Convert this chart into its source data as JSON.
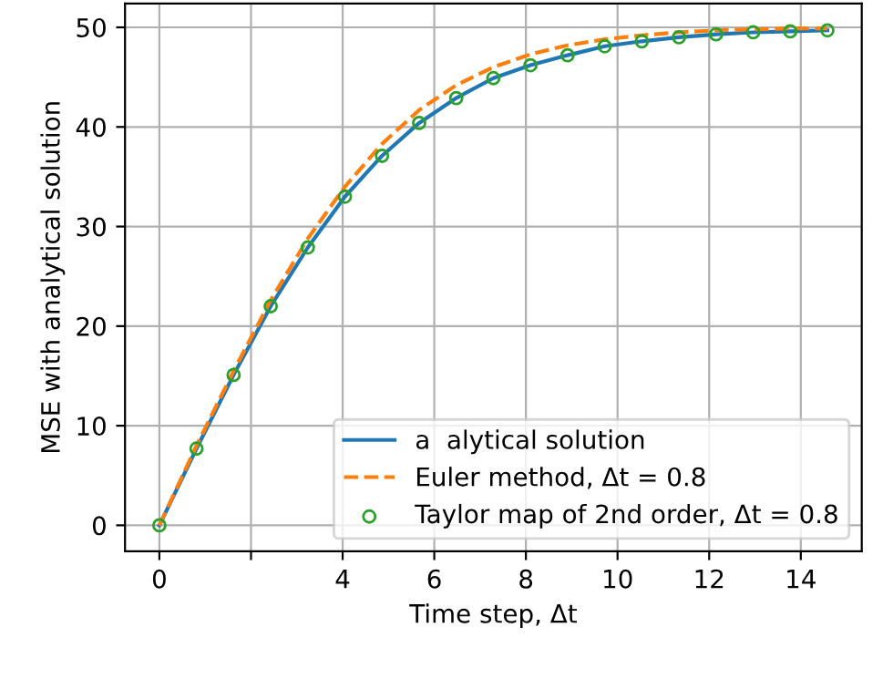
{
  "chart_data": {
    "type": "line",
    "xlabel": "Time step, Δt",
    "ylabel": "MSE with analytical solution",
    "x": [
      0,
      0.81,
      1.62,
      2.43,
      3.24,
      4.05,
      4.86,
      5.67,
      6.48,
      7.29,
      8.1,
      8.91,
      9.72,
      10.53,
      11.34,
      12.15,
      12.96,
      13.77,
      14.58
    ],
    "series": [
      {
        "name": "a  alytical solution",
        "color": "#1f77b4",
        "line_style": "solid",
        "marker": "none",
        "values": [
          0,
          7.7,
          15.1,
          22.0,
          27.9,
          33.0,
          37.1,
          40.4,
          42.9,
          44.9,
          46.2,
          47.2,
          48.1,
          48.6,
          49.0,
          49.3,
          49.5,
          49.6,
          49.7
        ]
      },
      {
        "name": "Euler method, Δt = 0.8",
        "color": "#ff7f0e",
        "line_style": "dashed",
        "marker": "none",
        "values": [
          0,
          8.0,
          15.5,
          22.6,
          28.8,
          34.0,
          38.3,
          41.7,
          44.2,
          46.0,
          47.3,
          48.2,
          48.8,
          49.2,
          49.5,
          49.7,
          49.8,
          49.9,
          49.9
        ]
      },
      {
        "name": "Taylor map of 2nd order, Δt = 0.8",
        "type": "scatter",
        "color": "#2ca02c",
        "marker": "circle",
        "values": [
          0,
          7.7,
          15.1,
          22.0,
          27.9,
          33.0,
          37.1,
          40.4,
          42.9,
          44.9,
          46.2,
          47.2,
          48.1,
          48.6,
          49.0,
          49.3,
          49.5,
          49.6,
          49.7
        ]
      }
    ],
    "xlim": [
      -0.75,
      15.33
    ],
    "ylim": [
      -2.6,
      52.4
    ],
    "xticks": [
      0,
      {
        "value": 2,
        "label": null
      },
      4,
      6,
      8,
      10,
      12,
      14
    ],
    "yticks": [
      0,
      10,
      20,
      30,
      40,
      50
    ],
    "grid": true,
    "legend": "bottom right"
  }
}
